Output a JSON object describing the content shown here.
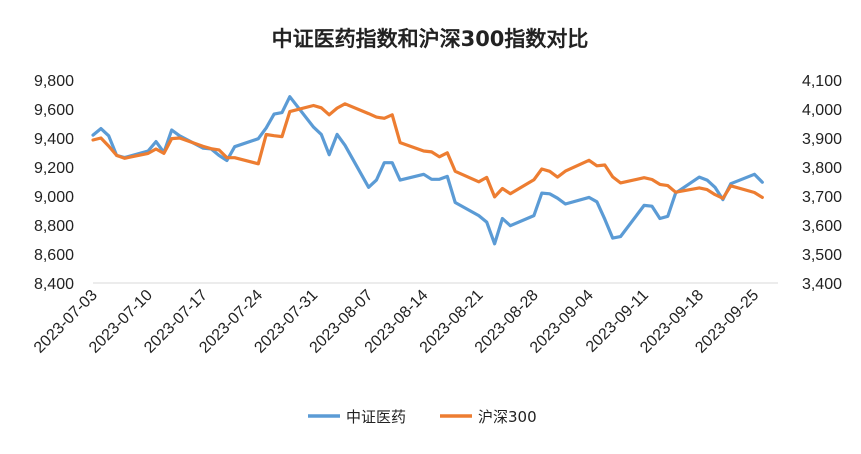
{
  "chart_data": {
    "type": "line",
    "title": "中证医药指数和沪深300指数对比",
    "xlabel": "",
    "ylabel": "",
    "x_ticks": [
      "2023-07-03",
      "2023-07-10",
      "2023-07-17",
      "2023-07-24",
      "2023-07-31",
      "2023-08-07",
      "2023-08-14",
      "2023-08-21",
      "2023-08-28",
      "2023-09-04",
      "2023-09-11",
      "2023-09-18",
      "2023-09-25"
    ],
    "x_range": [
      "2023-07-03",
      "2023-09-28"
    ],
    "left_axis": {
      "ticks": [
        "8,400",
        "8,600",
        "8,800",
        "9,000",
        "9,200",
        "9,400",
        "9,600",
        "9,800"
      ],
      "ylim": [
        8400,
        9800
      ]
    },
    "right_axis": {
      "ticks": [
        "3,400",
        "3,500",
        "3,600",
        "3,700",
        "3,800",
        "3,900",
        "4,000",
        "4,100"
      ],
      "ylim": [
        3400,
        4100
      ]
    },
    "legend_position": "bottom",
    "grid": false,
    "series": [
      {
        "name": "中证医药",
        "axis": "left",
        "color": "#5B9BD5",
        "points": [
          [
            "2023-07-03",
            9420
          ],
          [
            "2023-07-04",
            9465
          ],
          [
            "2023-07-05",
            9415
          ],
          [
            "2023-07-06",
            9280
          ],
          [
            "2023-07-07",
            9265
          ],
          [
            "2023-07-10",
            9310
          ],
          [
            "2023-07-11",
            9375
          ],
          [
            "2023-07-12",
            9300
          ],
          [
            "2023-07-13",
            9455
          ],
          [
            "2023-07-14",
            9415
          ],
          [
            "2023-07-17",
            9330
          ],
          [
            "2023-07-18",
            9325
          ],
          [
            "2023-07-19",
            9280
          ],
          [
            "2023-07-20",
            9245
          ],
          [
            "2023-07-21",
            9340
          ],
          [
            "2023-07-24",
            9395
          ],
          [
            "2023-07-25",
            9470
          ],
          [
            "2023-07-26",
            9565
          ],
          [
            "2023-07-27",
            9575
          ],
          [
            "2023-07-28",
            9685
          ],
          [
            "2023-07-31",
            9475
          ],
          [
            "2023-08-01",
            9425
          ],
          [
            "2023-08-02",
            9285
          ],
          [
            "2023-08-03",
            9425
          ],
          [
            "2023-08-04",
            9350
          ],
          [
            "2023-08-07",
            9060
          ],
          [
            "2023-08-08",
            9110
          ],
          [
            "2023-08-09",
            9230
          ],
          [
            "2023-08-10",
            9230
          ],
          [
            "2023-08-11",
            9110
          ],
          [
            "2023-08-14",
            9150
          ],
          [
            "2023-08-15",
            9115
          ],
          [
            "2023-08-16",
            9115
          ],
          [
            "2023-08-17",
            9135
          ],
          [
            "2023-08-18",
            8955
          ],
          [
            "2023-08-21",
            8865
          ],
          [
            "2023-08-22",
            8820
          ],
          [
            "2023-08-23",
            8670
          ],
          [
            "2023-08-24",
            8845
          ],
          [
            "2023-08-25",
            8795
          ],
          [
            "2023-08-28",
            8865
          ],
          [
            "2023-08-29",
            9020
          ],
          [
            "2023-08-30",
            9015
          ],
          [
            "2023-08-31",
            8985
          ],
          [
            "2023-09-01",
            8945
          ],
          [
            "2023-09-04",
            8990
          ],
          [
            "2023-09-05",
            8960
          ],
          [
            "2023-09-06",
            8840
          ],
          [
            "2023-09-07",
            8710
          ],
          [
            "2023-09-08",
            8720
          ],
          [
            "2023-09-11",
            8935
          ],
          [
            "2023-09-12",
            8930
          ],
          [
            "2023-09-13",
            8845
          ],
          [
            "2023-09-14",
            8860
          ],
          [
            "2023-09-15",
            9020
          ],
          [
            "2023-09-18",
            9130
          ],
          [
            "2023-09-19",
            9110
          ],
          [
            "2023-09-20",
            9060
          ],
          [
            "2023-09-21",
            8975
          ],
          [
            "2023-09-22",
            9085
          ],
          [
            "2023-09-25",
            9150
          ],
          [
            "2023-09-26",
            9095
          ]
        ]
      },
      {
        "name": "沪深300",
        "axis": "right",
        "color": "#ED7D31",
        "points": [
          [
            "2023-07-03",
            3893
          ],
          [
            "2023-07-04",
            3900
          ],
          [
            "2023-07-05",
            3872
          ],
          [
            "2023-07-06",
            3840
          ],
          [
            "2023-07-07",
            3830
          ],
          [
            "2023-07-10",
            3847
          ],
          [
            "2023-07-11",
            3862
          ],
          [
            "2023-07-12",
            3847
          ],
          [
            "2023-07-13",
            3898
          ],
          [
            "2023-07-14",
            3900
          ],
          [
            "2023-07-17",
            3871
          ],
          [
            "2023-07-18",
            3863
          ],
          [
            "2023-07-19",
            3859
          ],
          [
            "2023-07-20",
            3832
          ],
          [
            "2023-07-21",
            3832
          ],
          [
            "2023-07-24",
            3811
          ],
          [
            "2023-07-25",
            3912
          ],
          [
            "2023-07-26",
            3908
          ],
          [
            "2023-07-27",
            3905
          ],
          [
            "2023-07-28",
            3991
          ],
          [
            "2023-07-31",
            4012
          ],
          [
            "2023-08-01",
            4004
          ],
          [
            "2023-08-02",
            3980
          ],
          [
            "2023-08-03",
            4003
          ],
          [
            "2023-08-04",
            4018
          ],
          [
            "2023-08-07",
            3984
          ],
          [
            "2023-08-08",
            3972
          ],
          [
            "2023-08-09",
            3968
          ],
          [
            "2023-08-10",
            3980
          ],
          [
            "2023-08-11",
            3884
          ],
          [
            "2023-08-14",
            3855
          ],
          [
            "2023-08-15",
            3852
          ],
          [
            "2023-08-16",
            3835
          ],
          [
            "2023-08-17",
            3849
          ],
          [
            "2023-08-18",
            3785
          ],
          [
            "2023-08-21",
            3749
          ],
          [
            "2023-08-22",
            3764
          ],
          [
            "2023-08-23",
            3697
          ],
          [
            "2023-08-24",
            3726
          ],
          [
            "2023-08-25",
            3708
          ],
          [
            "2023-08-28",
            3756
          ],
          [
            "2023-08-29",
            3793
          ],
          [
            "2023-08-30",
            3785
          ],
          [
            "2023-08-31",
            3765
          ],
          [
            "2023-09-01",
            3786
          ],
          [
            "2023-09-04",
            3823
          ],
          [
            "2023-09-05",
            3804
          ],
          [
            "2023-09-06",
            3807
          ],
          [
            "2023-09-07",
            3766
          ],
          [
            "2023-09-08",
            3745
          ],
          [
            "2023-09-11",
            3763
          ],
          [
            "2023-09-12",
            3757
          ],
          [
            "2023-09-13",
            3740
          ],
          [
            "2023-09-14",
            3736
          ],
          [
            "2023-09-15",
            3713
          ],
          [
            "2023-09-18",
            3728
          ],
          [
            "2023-09-19",
            3722
          ],
          [
            "2023-09-20",
            3705
          ],
          [
            "2023-09-21",
            3692
          ],
          [
            "2023-09-22",
            3735
          ],
          [
            "2023-09-25",
            3712
          ],
          [
            "2023-09-26",
            3695
          ]
        ]
      }
    ]
  }
}
